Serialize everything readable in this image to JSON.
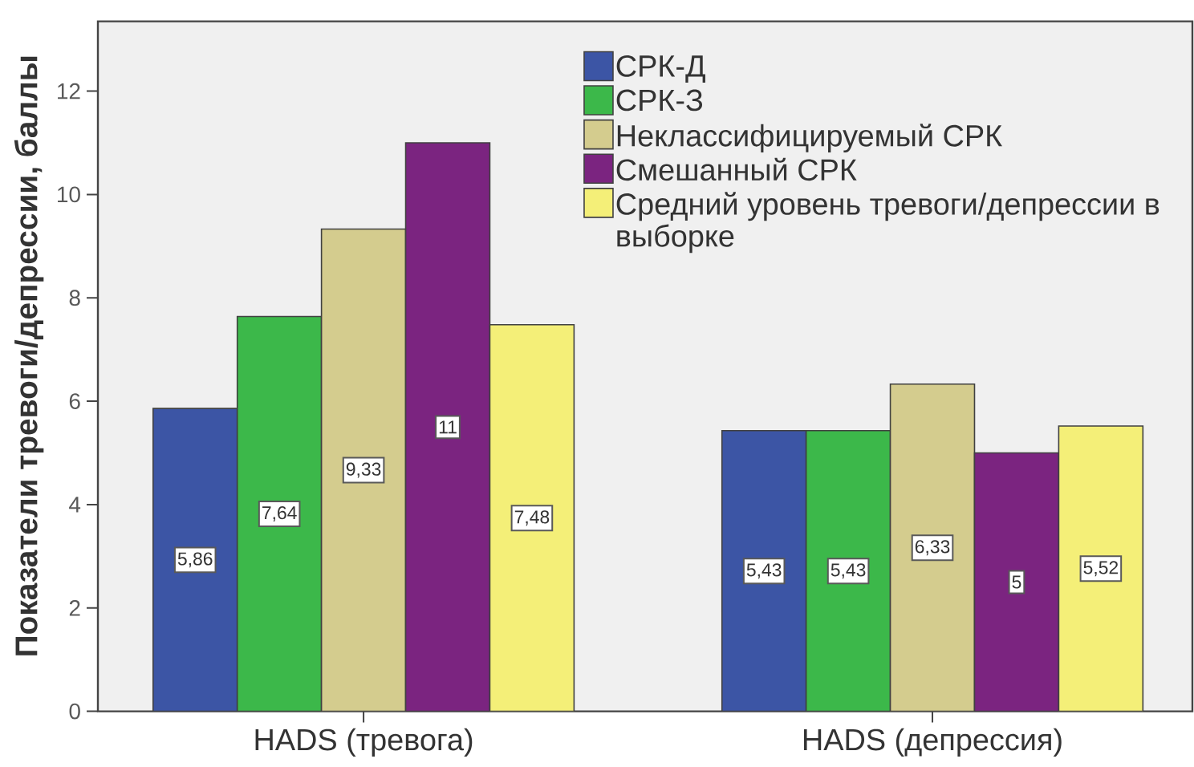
{
  "chart_data": {
    "type": "bar",
    "ylabel": "Показатели тревоги/депрессии, баллы",
    "categories": [
      "HADS (тревога)",
      "HADS (депрессия)"
    ],
    "series": [
      {
        "name": "СРК-Д",
        "color": "#3c55a5",
        "values": [
          5.86,
          5.43
        ],
        "value_labels": [
          "5,86",
          "5,43"
        ]
      },
      {
        "name": "СРК-З",
        "color": "#3cb84a",
        "values": [
          7.64,
          5.43
        ],
        "value_labels": [
          "7,64",
          "5,43"
        ]
      },
      {
        "name": "Неклассифицируемый СРК",
        "color": "#d4cc8e",
        "values": [
          9.33,
          6.33
        ],
        "value_labels": [
          "9,33",
          "6,33"
        ]
      },
      {
        "name": "Смешанный СРК",
        "color": "#7b2480",
        "values": [
          11,
          5
        ],
        "value_labels": [
          "11",
          "5"
        ]
      },
      {
        "name": "Средний уровень тревоги/депрессии в выборке",
        "color": "#f4ef78",
        "values": [
          7.48,
          5.52
        ],
        "value_labels": [
          "7,48",
          "5,52"
        ]
      }
    ],
    "ylim": [
      0,
      13.35
    ],
    "yticks": [
      0,
      2,
      4,
      6,
      8,
      10,
      12
    ],
    "legend": "top right",
    "grid": false
  }
}
